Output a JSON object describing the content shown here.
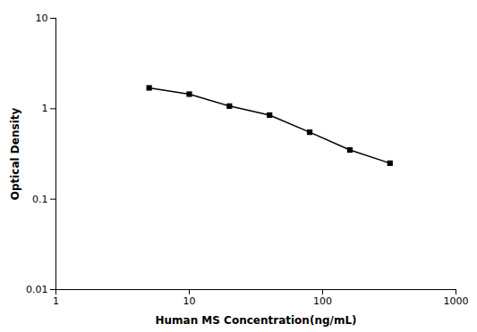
{
  "chart_data": {
    "type": "line",
    "xlabel": "Human MS Concentration(ng/mL)",
    "ylabel": "Optical Density",
    "x": [
      5,
      10,
      20,
      40,
      80,
      160,
      320
    ],
    "values": [
      1.7,
      1.45,
      1.07,
      0.85,
      0.55,
      0.35,
      0.25
    ],
    "xlim": [
      1,
      1000
    ],
    "ylim": [
      0.01,
      10
    ],
    "xticks": [
      1,
      10,
      100,
      1000
    ],
    "yticks": [
      0.01,
      0.1,
      1,
      10
    ],
    "log": true,
    "marker": "square",
    "grid": false
  }
}
